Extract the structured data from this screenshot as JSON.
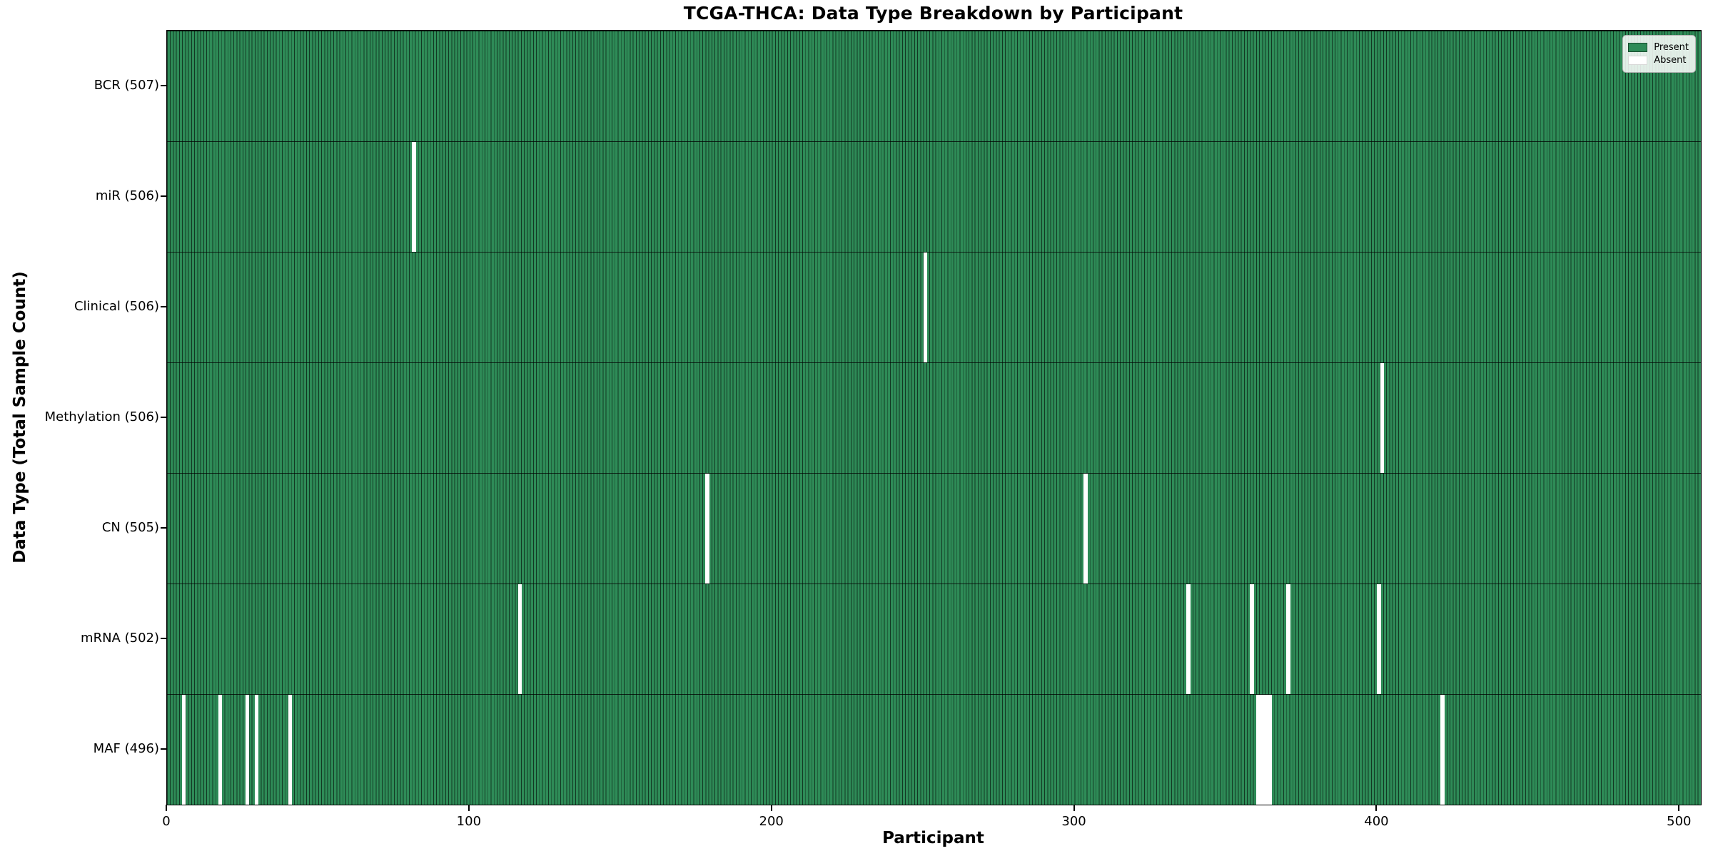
{
  "chart_data": {
    "type": "heatmap",
    "title": "TCGA-THCA: Data Type Breakdown by Participant",
    "xlabel": "Participant",
    "ylabel": "Data Type (Total Sample Count)",
    "n_participants": 507,
    "x_ticks": [
      0,
      100,
      200,
      300,
      400,
      500
    ],
    "xlim": [
      0,
      507
    ],
    "grid": false,
    "legend_position": "upper right",
    "present_color": "#2e8b57",
    "absent_color": "#ffffff",
    "legend": [
      {
        "label": "Present",
        "color": "#2e8b57"
      },
      {
        "label": "Absent",
        "color": "#ffffff"
      }
    ],
    "rows": [
      {
        "label": "BCR (507)",
        "name": "bcr",
        "present_count": 507,
        "absent_participants": []
      },
      {
        "label": "miR (506)",
        "name": "mir",
        "present_count": 506,
        "absent_participants": [
          81
        ]
      },
      {
        "label": "Clinical (506)",
        "name": "clinical",
        "present_count": 506,
        "absent_participants": [
          250
        ]
      },
      {
        "label": "Methylation (506)",
        "name": "methylation",
        "present_count": 506,
        "absent_participants": [
          401
        ]
      },
      {
        "label": "CN (505)",
        "name": "cn",
        "present_count": 505,
        "absent_participants": [
          178,
          303
        ]
      },
      {
        "label": "mRNA (502)",
        "name": "mrna",
        "present_count": 502,
        "absent_participants": [
          116,
          337,
          358,
          370,
          400
        ]
      },
      {
        "label": "MAF (496)",
        "name": "maf",
        "present_count": 496,
        "absent_participants": [
          5,
          17,
          26,
          29,
          40,
          360,
          361,
          362,
          363,
          364,
          421
        ]
      }
    ]
  }
}
